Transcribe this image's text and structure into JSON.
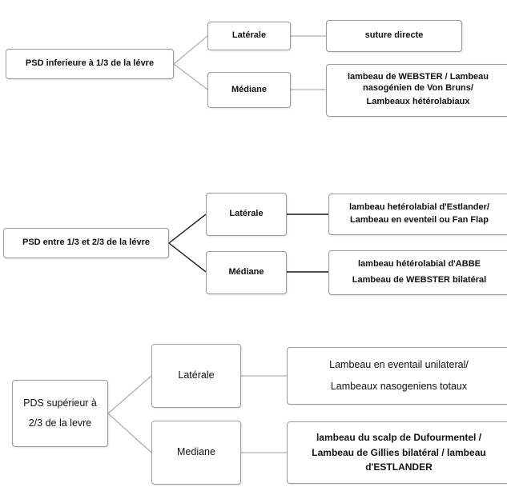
{
  "diagram": {
    "group1": {
      "root": "PSD inferieure à 1/3 de la lévre",
      "lateral": {
        "label": "Latérale",
        "result": "suture directe"
      },
      "median": {
        "label": "Médiane",
        "result": [
          "lambeau de WEBSTER / Lambeau",
          "nasogénien de Von Bruns/",
          "Lambeaux hétérolabiaux"
        ]
      }
    },
    "group2": {
      "root": "PSD entre 1/3 et 2/3 de la lévre",
      "lateral": {
        "label": "Latérale",
        "result": [
          "lambeau hetérolabial d'Estlander/",
          "Lambeau en eventeil ou Fan Flap"
        ]
      },
      "median": {
        "label": "Médiane",
        "result": [
          "lambeau hétérolabial d'ABBE",
          "Lambeau de WEBSTER bilatéral"
        ]
      }
    },
    "group3": {
      "root": [
        "PDS supérieur à",
        "2/3 de la levre"
      ],
      "lateral": {
        "label": "Latérale",
        "result": [
          "Lambeau en eventail unilateral/",
          "Lambeaux nasogeniens totaux"
        ]
      },
      "median": {
        "label": "Mediane",
        "result": [
          "lambeau du scalp de Dufourmentel /",
          "Lambeau de Gillies bilatéral / lambeau",
          "d'ESTLANDER"
        ]
      }
    }
  },
  "colors": {
    "border": "#9a9a9a",
    "connector_grey": "#b0b0b0",
    "connector_dark": "#1a1a1a"
  }
}
